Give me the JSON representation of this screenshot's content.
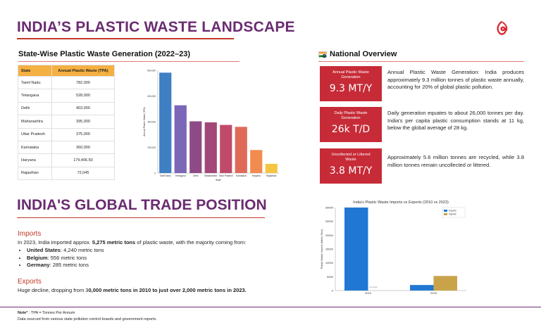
{
  "header": {
    "title": "INDIA’S PLASTIC WASTE LANDSCAPE"
  },
  "state_section": {
    "title": "State-Wise Plastic Waste Generation (2022–23)",
    "table": {
      "columns": [
        "State",
        "Annual Plastic Waste (TPA)"
      ],
      "rows": [
        [
          "Tamil Nadu",
          "782,000"
        ],
        [
          "Telangana",
          "528,000"
        ],
        [
          "Delhi",
          "403,000"
        ],
        [
          "Maharashtra",
          "395,000"
        ],
        [
          "Uttar Pradesh",
          "375,000"
        ],
        [
          "Karnataka",
          "360,000"
        ],
        [
          "Haryana",
          "179,406.50"
        ],
        [
          "Rajasthan",
          "72,045"
        ]
      ]
    }
  },
  "national": {
    "title": "National Overview",
    "stats": [
      {
        "label": "Annual Plastic Waste Generation",
        "value": "9.3 MT/Y",
        "desc": "Annual Plastic Waste Generation: India produces approximately 9.3 million tonnes of plastic waste annually, accounting for 20% of global plastic pollution."
      },
      {
        "label": "Daily Plastic Waste Generation",
        "value": "26k T/D",
        "desc": "Daily generation equates to about 26,000 tonnes per day. India's per capita plastic consumption stands at 11 kg, below the global average of 28 kg."
      },
      {
        "label": "Uncollected or Littered Waste",
        "value": "3.8 MT/Y",
        "desc": "Approximately 5.6 million tonnes are recycled, while 3.8 million tonnes remain uncollected or littered."
      }
    ]
  },
  "trade": {
    "title": "INDIA'S GLOBAL TRADE POSITION",
    "imports_heading": "Imports",
    "imports_pre": "In 2023, India imported approx. ",
    "imports_bold": "5,275 metric tons",
    "imports_post": " of plastic waste, with the majority coming from:",
    "origins": [
      {
        "country": "United States",
        "amount": ": 4,240 metric tons"
      },
      {
        "country": "Belgium",
        "amount": ": 556 metric tons"
      },
      {
        "country": "Germany",
        "amount": ": 285 metric tons"
      }
    ],
    "exports_heading": "Exports",
    "exports_pre": "Huge decline, dropping from 3",
    "exports_bold": "0,000 metric tons in 2010 to just over 2,000 metric tons in 2023."
  },
  "footer": {
    "note_label": "Note*",
    "note_text": " : TPA = Tonnes Per Annum",
    "source": "Data sourced from various state pollution control boards and government reports."
  },
  "colors": {
    "accent": "#6a2c70",
    "stat_box": "#c62b37",
    "table_header": "#f5b042"
  },
  "chart_data": [
    {
      "type": "bar",
      "title": "",
      "xlabel": "State",
      "ylabel": "Annual Plastic Waste (TPA)",
      "categories": [
        "Tamil Nadu",
        "Telangana",
        "Delhi",
        "Maharashtra",
        "Uttar Pradesh",
        "Karnataka",
        "Haryana",
        "Rajasthan"
      ],
      "values": [
        782000,
        528000,
        403000,
        395000,
        375000,
        360000,
        179406.5,
        72045
      ],
      "bar_colors": [
        "#3f7fc4",
        "#7b66b8",
        "#8e4a86",
        "#a24878",
        "#c04a6a",
        "#e06a5a",
        "#f08c50",
        "#f5c542"
      ],
      "yticks": [
        0,
        200000,
        400000,
        600000,
        800000
      ],
      "ytick_labels": [
        "0",
        "200,000",
        "400,000",
        "600,000",
        "800,000"
      ],
      "ylim": [
        0,
        800000
      ]
    },
    {
      "type": "bar",
      "title": "India's Plastic Waste Imports vs Exports (2010 vs 2023)",
      "xlabel": "",
      "ylabel": "Plastic Waste Volume (Metric Tons)",
      "categories": [
        "2010",
        "2023"
      ],
      "series": [
        {
          "name": "Exports",
          "values": [
            30000,
            2000
          ],
          "color": "#2178d4"
        },
        {
          "name": "Imports",
          "values": [
            null,
            5275
          ],
          "color": "#c9a34a"
        }
      ],
      "annotation": "No Data",
      "yticks": [
        0,
        5000,
        10000,
        15000,
        20000,
        25000,
        30000
      ],
      "ylim": [
        0,
        30000
      ],
      "legend": "top-right"
    }
  ]
}
